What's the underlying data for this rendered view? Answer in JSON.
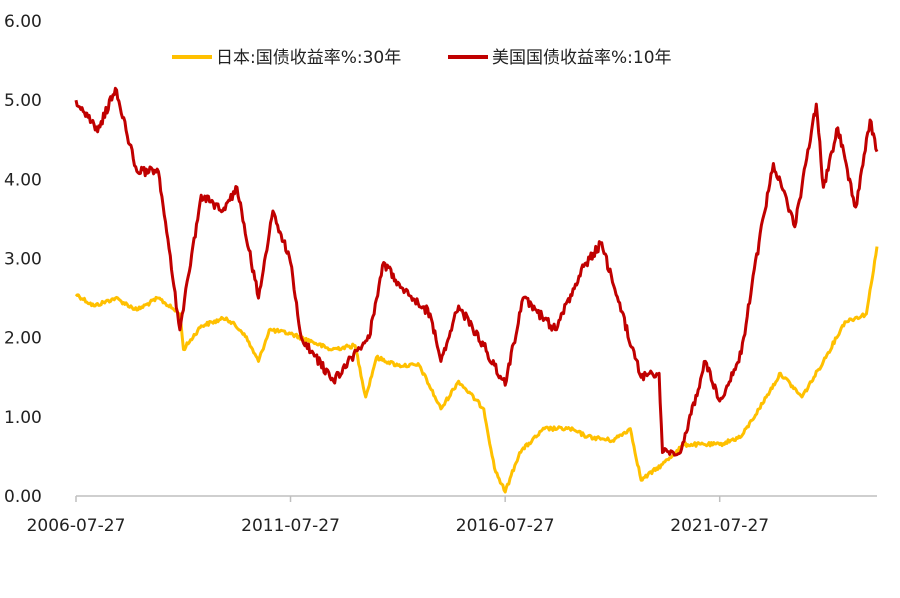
{
  "chart_data": {
    "type": "line",
    "title": "",
    "xlabel": "",
    "ylabel": "",
    "x_range": [
      "2006-07-27",
      "2025-03-27"
    ],
    "ylim": [
      0,
      6
    ],
    "y_ticks": [
      "0.00",
      "1.00",
      "2.00",
      "3.00",
      "4.00",
      "5.00",
      "6.00"
    ],
    "x_ticks": [
      "2006-07-27",
      "2011-07-27",
      "2016-07-27",
      "2021-07-27"
    ],
    "grid": false,
    "legend_position": "top",
    "series": [
      {
        "name": "日本:国债收益率%:30年",
        "color": "#FFC000",
        "points": [
          [
            "2006-07-27",
            2.55
          ],
          [
            "2006-12-27",
            2.4
          ],
          [
            "2007-06-27",
            2.5
          ],
          [
            "2007-12-27",
            2.35
          ],
          [
            "2008-06-27",
            2.5
          ],
          [
            "2008-12-27",
            2.3
          ],
          [
            "2009-01-27",
            1.85
          ],
          [
            "2009-06-27",
            2.15
          ],
          [
            "2010-01-27",
            2.25
          ],
          [
            "2010-06-27",
            2.05
          ],
          [
            "2010-10-27",
            1.7
          ],
          [
            "2011-01-27",
            2.1
          ],
          [
            "2011-07-27",
            2.05
          ],
          [
            "2012-01-27",
            1.95
          ],
          [
            "2012-06-27",
            1.85
          ],
          [
            "2013-01-27",
            1.9
          ],
          [
            "2013-04-27",
            1.25
          ],
          [
            "2013-07-27",
            1.75
          ],
          [
            "2014-01-27",
            1.65
          ],
          [
            "2014-07-27",
            1.65
          ],
          [
            "2015-01-27",
            1.1
          ],
          [
            "2015-06-27",
            1.45
          ],
          [
            "2016-01-27",
            1.1
          ],
          [
            "2016-04-27",
            0.35
          ],
          [
            "2016-07-27",
            0.05
          ],
          [
            "2016-11-27",
            0.55
          ],
          [
            "2017-06-27",
            0.85
          ],
          [
            "2018-01-27",
            0.85
          ],
          [
            "2018-06-27",
            0.75
          ],
          [
            "2019-01-27",
            0.7
          ],
          [
            "2019-06-27",
            0.85
          ],
          [
            "2019-09-27",
            0.2
          ],
          [
            "2020-03-27",
            0.4
          ],
          [
            "2020-09-27",
            0.65
          ],
          [
            "2021-07-27",
            0.65
          ],
          [
            "2022-01-27",
            0.75
          ],
          [
            "2022-06-27",
            1.1
          ],
          [
            "2022-12-27",
            1.55
          ],
          [
            "2023-06-27",
            1.25
          ],
          [
            "2023-12-27",
            1.7
          ],
          [
            "2024-06-27",
            2.2
          ],
          [
            "2024-12-27",
            2.3
          ],
          [
            "2025-03-27",
            3.15
          ]
        ]
      },
      {
        "name": "美国国债收益率%:10年",
        "color": "#C00000",
        "points": [
          [
            "2006-07-27",
            5.0
          ],
          [
            "2007-01-27",
            4.6
          ],
          [
            "2007-06-27",
            5.15
          ],
          [
            "2007-12-27",
            4.1
          ],
          [
            "2008-06-27",
            4.1
          ],
          [
            "2008-12-27",
            2.1
          ],
          [
            "2009-06-27",
            3.8
          ],
          [
            "2009-12-27",
            3.6
          ],
          [
            "2010-04-27",
            3.9
          ],
          [
            "2010-10-27",
            2.5
          ],
          [
            "2011-02-27",
            3.6
          ],
          [
            "2011-07-27",
            2.95
          ],
          [
            "2011-10-27",
            2.0
          ],
          [
            "2012-07-27",
            1.45
          ],
          [
            "2012-12-27",
            1.75
          ],
          [
            "2013-05-27",
            2.0
          ],
          [
            "2013-09-27",
            2.95
          ],
          [
            "2014-01-27",
            2.7
          ],
          [
            "2014-10-27",
            2.3
          ],
          [
            "2015-01-27",
            1.7
          ],
          [
            "2015-06-27",
            2.4
          ],
          [
            "2016-01-27",
            1.9
          ],
          [
            "2016-07-27",
            1.4
          ],
          [
            "2016-12-27",
            2.5
          ],
          [
            "2017-09-27",
            2.1
          ],
          [
            "2018-05-27",
            2.9
          ],
          [
            "2018-10-27",
            3.2
          ],
          [
            "2019-01-27",
            2.7
          ],
          [
            "2019-09-27",
            1.5
          ],
          [
            "2020-02-27",
            1.55
          ],
          [
            "2020-03-27",
            0.55
          ],
          [
            "2020-08-27",
            0.55
          ],
          [
            "2021-03-27",
            1.7
          ],
          [
            "2021-07-27",
            1.2
          ],
          [
            "2022-01-27",
            1.8
          ],
          [
            "2022-06-27",
            3.2
          ],
          [
            "2022-10-27",
            4.2
          ],
          [
            "2023-04-27",
            3.4
          ],
          [
            "2023-10-27",
            4.95
          ],
          [
            "2023-12-27",
            3.9
          ],
          [
            "2024-04-27",
            4.65
          ],
          [
            "2024-09-27",
            3.65
          ],
          [
            "2025-01-27",
            4.75
          ],
          [
            "2025-03-27",
            4.35
          ]
        ]
      }
    ]
  }
}
